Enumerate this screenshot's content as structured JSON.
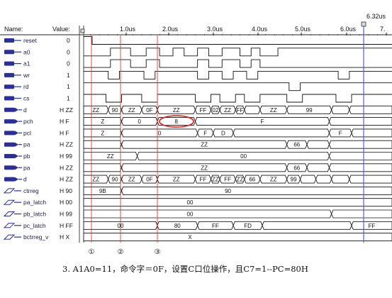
{
  "header": {
    "name_label": "Name:",
    "value_label": "Value:",
    "cursor_time": "6.32us"
  },
  "timescale": {
    "ticks": [
      "1.0us",
      "2.0us",
      "3.0us",
      "4.0us",
      "5.0us",
      "6.0us",
      "7."
    ]
  },
  "signals": [
    {
      "name": "reset",
      "value": "0",
      "kind": "bit"
    },
    {
      "name": "a0",
      "value": "0",
      "kind": "bit"
    },
    {
      "name": "a1",
      "value": "0",
      "kind": "bit"
    },
    {
      "name": "wr",
      "value": "1",
      "kind": "bit"
    },
    {
      "name": "rd",
      "value": "1",
      "kind": "bit"
    },
    {
      "name": "cs",
      "value": "1",
      "kind": "bit"
    },
    {
      "name": "d",
      "value": "H ZZ",
      "kind": "bus"
    },
    {
      "name": "pch",
      "value": "H F",
      "kind": "bus"
    },
    {
      "name": "pcl",
      "value": "H F",
      "kind": "bus"
    },
    {
      "name": "pa",
      "value": "H ZZ",
      "kind": "bus"
    },
    {
      "name": "pb",
      "value": "H 99",
      "kind": "bus"
    },
    {
      "name": "pa",
      "value": "H ZZ",
      "kind": "bus"
    },
    {
      "name": "d",
      "value": "H ZZ",
      "kind": "bus"
    },
    {
      "name": "ctrreg",
      "value": "H 90",
      "kind": "reg"
    },
    {
      "name": "pa_latch",
      "value": "H 00",
      "kind": "reg"
    },
    {
      "name": "pb_latch",
      "value": "H 99",
      "kind": "reg"
    },
    {
      "name": "pc_latch",
      "value": "H FF",
      "kind": "reg"
    },
    {
      "name": "bctrreg_v",
      "value": "H X",
      "kind": "reg"
    }
  ],
  "bus_rows": [
    {
      "labels": [
        "ZZ",
        "90",
        "ZZ",
        "0F",
        "ZZ",
        "FF",
        "02",
        "ZZ",
        "FF",
        "ZZ",
        "99"
      ]
    },
    {
      "labels": [
        "Z",
        "0",
        "8",
        "F"
      ]
    },
    {
      "labels": [
        "Z",
        "0",
        "F",
        "D",
        "F"
      ]
    },
    {
      "labels": [
        "ZZ",
        "66"
      ]
    },
    {
      "labels": [
        "ZZ",
        "00"
      ]
    },
    {
      "labels": [
        "ZZ",
        "66"
      ]
    },
    {
      "labels": [
        "ZZ",
        "90",
        "ZZ",
        "0F",
        "ZZ",
        "FF",
        "ZZ",
        "FF",
        "ZZ",
        "66",
        "ZZ",
        "99"
      ]
    },
    {
      "labels": [
        "9B",
        "90"
      ]
    },
    {
      "labels": [
        "00"
      ]
    },
    {
      "labels": [
        "00"
      ]
    },
    {
      "labels": [
        "00",
        "80",
        "FF",
        "FD",
        "FF"
      ]
    },
    {
      "labels": [
        "X"
      ]
    }
  ],
  "markers": [
    "①",
    "②",
    "③"
  ],
  "caption": "3.  A1A0=11，命令字＝0F，设置C口位操作，且C7=1--PC=80H",
  "colors": {
    "marker_line": "#e23b3b",
    "cursor_line": "#5a5ad6",
    "highlight": "#e02020",
    "icon": "#2a2f9a"
  },
  "icons": {
    "input": "input-pin-icon",
    "bus": "bus-pin-icon",
    "register": "register-icon"
  }
}
